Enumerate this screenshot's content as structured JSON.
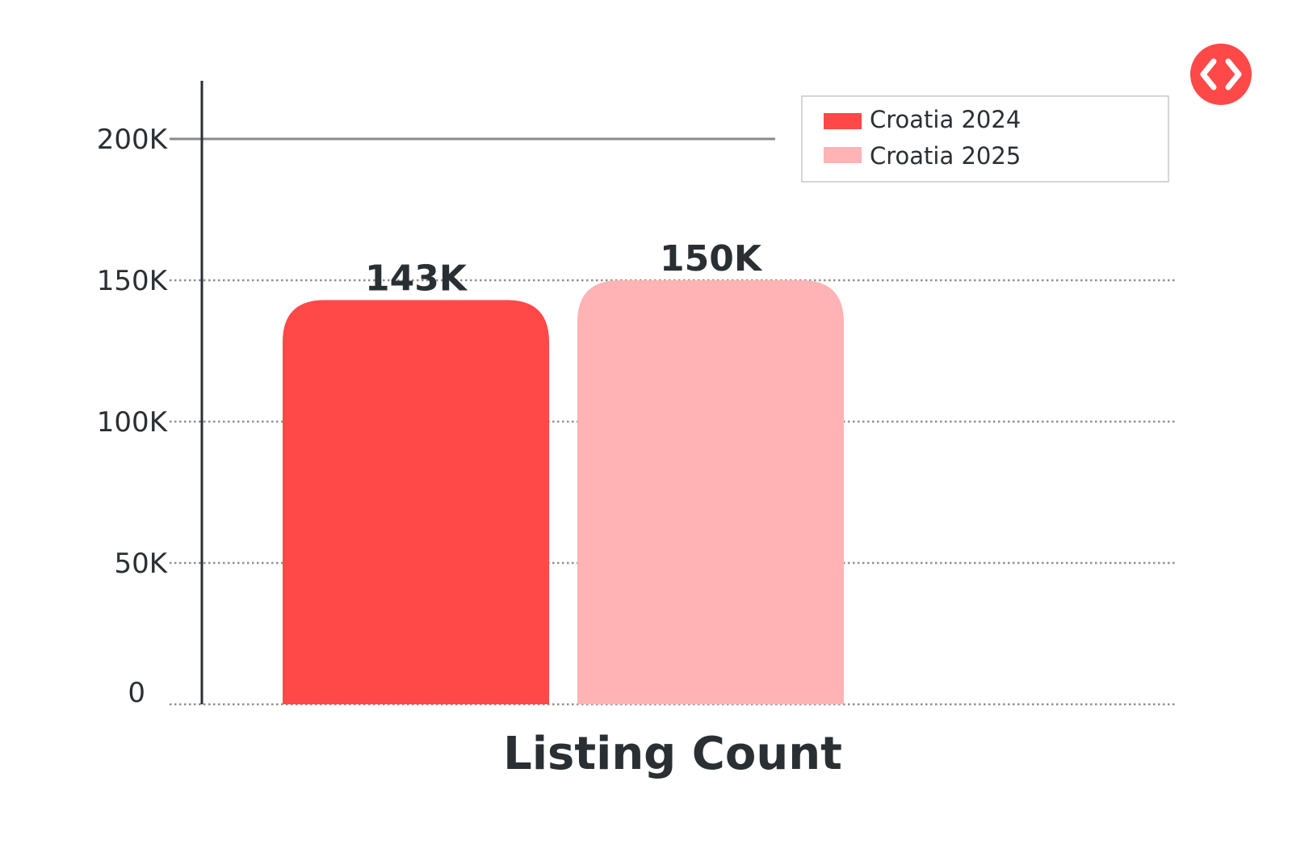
{
  "chart_data": {
    "type": "bar",
    "categories": [
      "Listing Count"
    ],
    "series": [
      {
        "name": "Croatia 2024",
        "values": [
          143000
        ],
        "label": "143K",
        "color": "#ff4848"
      },
      {
        "name": "Croatia 2025",
        "values": [
          150000
        ],
        "label": "150K",
        "color": "#ffb3b5"
      }
    ],
    "xlabel": "Listing Count",
    "ylabel": "",
    "ylim": [
      0,
      200000
    ],
    "yticks": [
      {
        "value": 0,
        "label": "0"
      },
      {
        "value": 50000,
        "label": "50K"
      },
      {
        "value": 100000,
        "label": "100K"
      },
      {
        "value": 150000,
        "label": "150K"
      },
      {
        "value": 200000,
        "label": "200K"
      }
    ],
    "grid": true,
    "legend_position": "top-right"
  },
  "logo": {
    "icon": "code-brackets-icon",
    "color": "#ff4848"
  }
}
